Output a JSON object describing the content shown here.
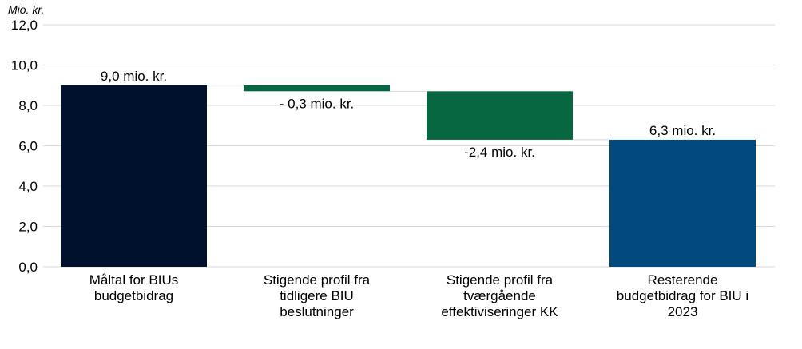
{
  "chart_data": {
    "type": "bar",
    "subtype": "waterfall",
    "yunit": "Mio. kr.",
    "ylim": [
      0,
      12
    ],
    "yticks": [
      "0,0",
      "2,0",
      "4,0",
      "6,0",
      "8,0",
      "10,0",
      "12,0"
    ],
    "grid": true,
    "categories": [
      [
        "Måltal for BIUs",
        "budgetbidrag"
      ],
      [
        "Stigende profil fra",
        "tidligere BIU",
        "beslutninger"
      ],
      [
        "Stigende profil fra",
        "tværgående",
        "effektiviseringer KK"
      ],
      [
        "Resterende",
        "budgetbidrag for BIU i",
        "2023"
      ]
    ],
    "bars": [
      {
        "start": 0,
        "end": 9.0,
        "label": "9,0 mio. kr.",
        "color": "#00112e",
        "label_pos": "above"
      },
      {
        "start": 9.0,
        "end": 8.7,
        "label": "- 0,3 mio. kr.",
        "color": "#076741",
        "label_pos": "below"
      },
      {
        "start": 8.7,
        "end": 6.3,
        "label": "-2,4 mio. kr.",
        "color": "#076741",
        "label_pos": "below"
      },
      {
        "start": 0,
        "end": 6.3,
        "label": "6,3 mio. kr.",
        "color": "#004a80",
        "label_pos": "above"
      }
    ]
  }
}
